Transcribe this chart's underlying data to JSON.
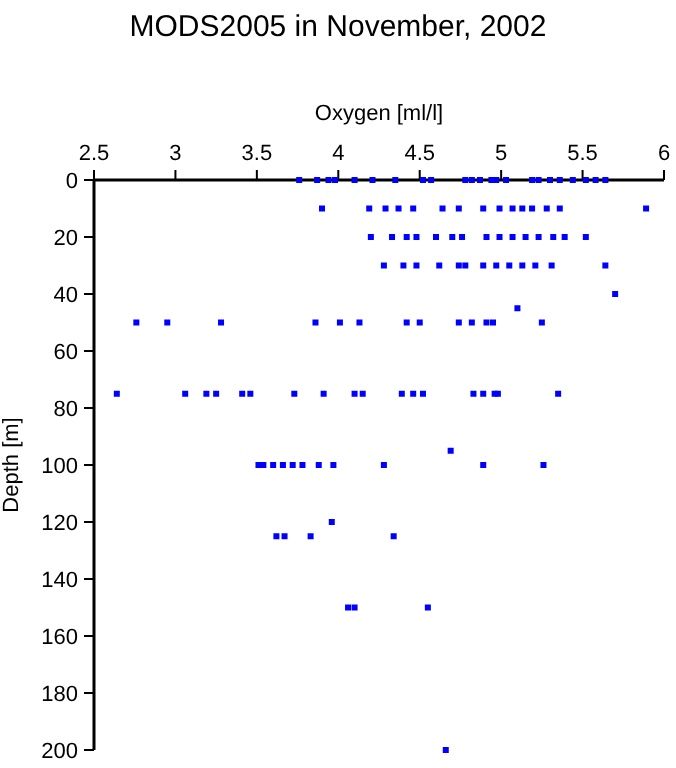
{
  "chart_data": {
    "type": "scatter",
    "title": "MODS2005 in November, 2002",
    "xlabel": "Oxygen [ml/l]",
    "ylabel": "Depth [m]",
    "xlim": [
      2.5,
      6
    ],
    "ylim": [
      200,
      0
    ],
    "xticks": [
      2.5,
      3,
      3.5,
      4,
      4.5,
      5,
      5.5,
      6
    ],
    "yticks": [
      0,
      20,
      40,
      60,
      80,
      100,
      120,
      140,
      160,
      180,
      200
    ],
    "marker": "square",
    "grid": false,
    "series": [
      {
        "color": "#0000ff",
        "x": [
          3.76,
          3.87,
          3.94,
          3.98,
          4.1,
          4.21,
          4.35,
          4.52,
          4.57,
          4.78,
          4.82,
          4.87,
          4.94,
          4.97,
          5.03,
          5.19,
          5.23,
          5.3,
          5.36,
          5.44,
          5.52,
          5.58,
          5.64,
          3.9,
          4.19,
          4.29,
          4.37,
          4.46,
          4.64,
          4.74,
          4.89,
          4.99,
          5.07,
          5.13,
          5.19,
          5.28,
          5.36,
          5.89,
          4.2,
          4.33,
          4.42,
          4.48,
          4.6,
          4.7,
          4.76,
          4.91,
          4.99,
          5.07,
          5.15,
          5.23,
          5.32,
          5.39,
          5.52,
          4.28,
          4.4,
          4.48,
          4.62,
          4.74,
          4.78,
          4.89,
          4.97,
          5.05,
          5.13,
          5.21,
          5.31,
          5.64,
          5.7,
          5.1,
          2.76,
          2.95,
          3.28,
          3.86,
          4.01,
          4.13,
          4.42,
          4.5,
          4.74,
          4.82,
          4.91,
          4.95,
          5.25,
          2.64,
          3.06,
          3.19,
          3.25,
          3.41,
          3.46,
          3.73,
          3.91,
          4.1,
          4.15,
          4.39,
          4.46,
          4.52,
          4.83,
          4.89,
          4.96,
          4.98,
          5.35,
          4.69,
          3.51,
          3.54,
          3.6,
          3.66,
          3.72,
          3.78,
          3.88,
          3.97,
          4.28,
          4.89,
          5.26,
          3.96,
          3.62,
          3.67,
          3.83,
          4.34,
          4.06,
          4.1,
          4.55,
          4.66
        ],
        "values": [
          0,
          0,
          0,
          0,
          0,
          0,
          0,
          0,
          0,
          0,
          0,
          0,
          0,
          0,
          0,
          0,
          0,
          0,
          0,
          0,
          0,
          0,
          0,
          10,
          10,
          10,
          10,
          10,
          10,
          10,
          10,
          10,
          10,
          10,
          10,
          10,
          10,
          10,
          20,
          20,
          20,
          20,
          20,
          20,
          20,
          20,
          20,
          20,
          20,
          20,
          20,
          20,
          20,
          30,
          30,
          30,
          30,
          30,
          30,
          30,
          30,
          30,
          30,
          30,
          30,
          30,
          40,
          45,
          50,
          50,
          50,
          50,
          50,
          50,
          50,
          50,
          50,
          50,
          50,
          50,
          50,
          75,
          75,
          75,
          75,
          75,
          75,
          75,
          75,
          75,
          75,
          75,
          75,
          75,
          75,
          75,
          75,
          75,
          75,
          95,
          100,
          100,
          100,
          100,
          100,
          100,
          100,
          100,
          100,
          100,
          100,
          120,
          125,
          125,
          125,
          125,
          150,
          150,
          150,
          200
        ]
      }
    ]
  }
}
